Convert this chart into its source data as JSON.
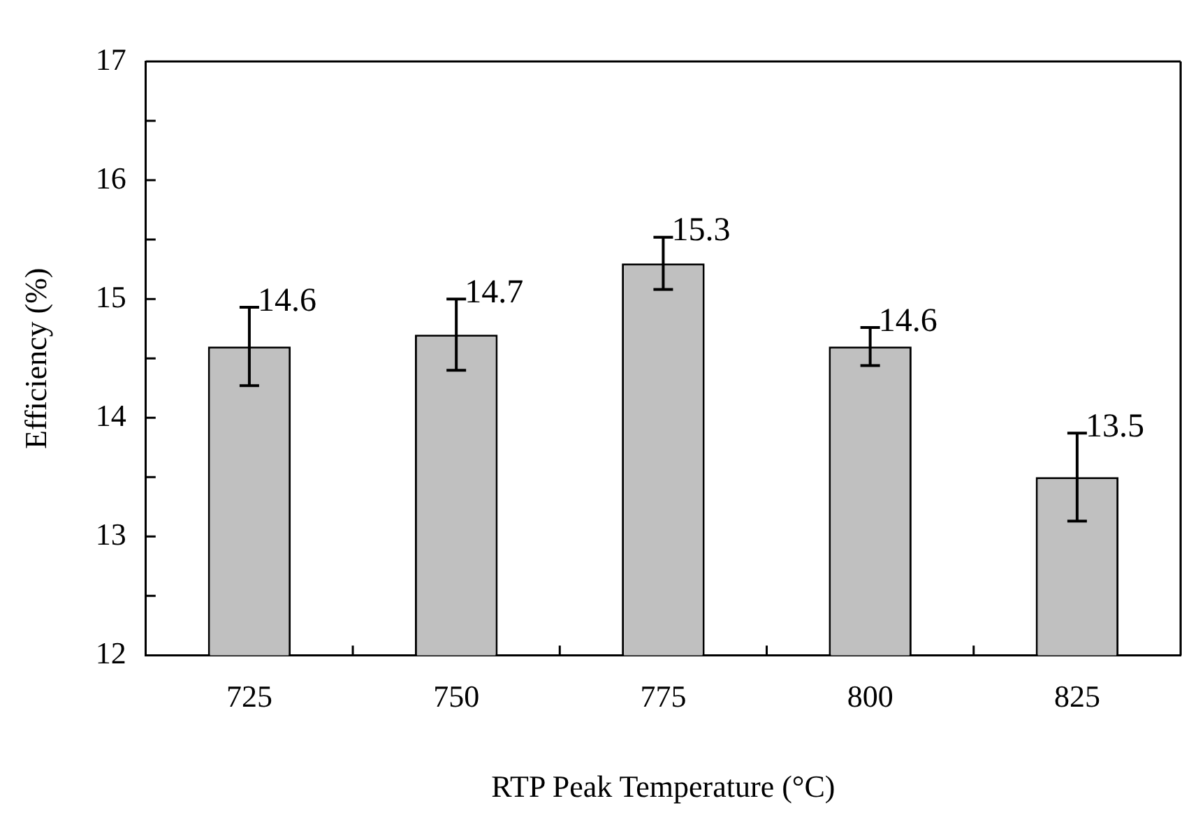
{
  "chart_data": {
    "type": "bar",
    "xlabel": "RTP Peak Temperature (°C)",
    "ylabel": "Efficiency (%)",
    "categories": [
      "725",
      "750",
      "775",
      "800",
      "825"
    ],
    "values": [
      14.6,
      14.7,
      15.3,
      14.6,
      13.5
    ],
    "errors": [
      0.33,
      0.3,
      0.22,
      0.16,
      0.37
    ],
    "color": "#c0c0c0",
    "data_labels": true,
    "ylim": [
      12,
      17
    ],
    "yticks": [
      12,
      {
        "value": 12.5,
        "label": null
      },
      13,
      {
        "value": 13.5,
        "label": null
      },
      14,
      {
        "value": 14.5,
        "label": null
      },
      15,
      {
        "value": 15.5,
        "label": null
      },
      16,
      {
        "value": 16.5,
        "label": null
      },
      17
    ]
  }
}
